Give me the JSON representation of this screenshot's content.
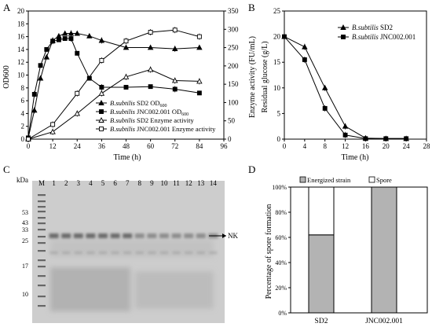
{
  "panels": {
    "A": {
      "label": "A",
      "chart_data": {
        "type": "line",
        "xlabel": "Time (h)",
        "ylabel_left": "OD600",
        "ylabel_right": "Enzyme activity (FU/mL)",
        "xlim": [
          0,
          96
        ],
        "xticks": [
          0,
          12,
          24,
          36,
          48,
          60,
          72,
          84,
          96
        ],
        "ylim_left": [
          0,
          20
        ],
        "yticks_left": [
          0,
          2,
          4,
          6,
          8,
          10,
          12,
          14,
          16,
          18,
          20
        ],
        "ylim_right": [
          0,
          350
        ],
        "yticks_right": [
          0,
          50,
          100,
          150,
          200,
          250,
          300,
          350
        ],
        "legend_position": "bottom-right",
        "series": [
          {
            "name": "B.subtilis SD2 OD600",
            "axis": "left",
            "marker": "filled-triangle",
            "x": [
              0,
              3,
              6,
              9,
              12,
              15,
              18,
              21,
              24,
              30,
              36,
              48,
              60,
              72,
              84
            ],
            "y": [
              0.2,
              4.5,
              9.5,
              12.8,
              15.4,
              16.1,
              16.5,
              16.5,
              16.5,
              16.1,
              15.4,
              14.3,
              14.3,
              14.1,
              14.3
            ]
          },
          {
            "name": "B.subtilis JNC002.001 OD600",
            "axis": "left",
            "marker": "filled-square",
            "x": [
              0,
              3,
              6,
              9,
              12,
              15,
              18,
              21,
              24,
              30,
              36,
              48,
              60,
              72,
              84
            ],
            "y": [
              0.2,
              7.0,
              11.5,
              14.0,
              15.3,
              15.5,
              15.7,
              15.7,
              13.4,
              9.5,
              8.1,
              8.1,
              8.2,
              7.8,
              7.2
            ]
          },
          {
            "name": "B.subtilis SD2 Enzyme activity",
            "axis": "right",
            "marker": "open-triangle",
            "x": [
              0,
              12,
              24,
              36,
              48,
              60,
              72,
              84
            ],
            "y": [
              0,
              20,
              70,
              125,
              170,
              190,
              160,
              158
            ]
          },
          {
            "name": "B.subtilis JNC002.001 Enzyme activity",
            "axis": "right",
            "marker": "open-square",
            "x": [
              0,
              12,
              24,
              36,
              48,
              60,
              72,
              84
            ],
            "y": [
              0,
              40,
              125,
              215,
              268,
              292,
              298,
              280
            ]
          }
        ]
      }
    },
    "B": {
      "label": "B",
      "chart_data": {
        "type": "line",
        "xlabel": "Time (h)",
        "ylabel": "Residual glucose (g/L)",
        "xlim": [
          0,
          28
        ],
        "xticks": [
          0,
          4,
          8,
          12,
          16,
          20,
          24,
          28
        ],
        "ylim": [
          0,
          25
        ],
        "yticks": [
          0,
          5,
          10,
          15,
          20,
          25
        ],
        "legend_position": "top-right",
        "series": [
          {
            "name": "B.subtilis SD2",
            "marker": "filled-triangle",
            "x": [
              0,
              4,
              8,
              12,
              16,
              20,
              24
            ],
            "y": [
              20,
              18,
              10,
              2.5,
              0.2,
              0.1,
              0.1
            ]
          },
          {
            "name": "B.subtilis JNC002.001",
            "marker": "filled-square",
            "x": [
              0,
              4,
              8,
              12,
              16,
              20,
              24
            ],
            "y": [
              20,
              15.5,
              6,
              0.8,
              0.1,
              0.1,
              0.1
            ]
          }
        ]
      }
    },
    "C": {
      "label": "C",
      "kda_label": "kDa",
      "lanes": [
        "M",
        "1",
        "2",
        "3",
        "4",
        "5",
        "6",
        "7",
        "8",
        "9",
        "10",
        "11",
        "12",
        "13",
        "14"
      ],
      "markers": [
        "53",
        "43",
        "33",
        "25",
        "17",
        "10"
      ],
      "band_label": "NK"
    },
    "D": {
      "label": "D",
      "chart_data": {
        "type": "bar",
        "stacked": true,
        "categories": [
          "SD2",
          "JNC002.001"
        ],
        "ylabel": "Percentage of spore formation",
        "ylim": [
          0,
          100
        ],
        "yticks": [
          "0%",
          "20%",
          "40%",
          "60%",
          "80%",
          "100%"
        ],
        "legend_position": "top",
        "series": [
          {
            "name": "Energized strain",
            "values": [
              62,
              100
            ],
            "color": "#b3b3b3"
          },
          {
            "name": "Spore",
            "values": [
              38,
              0
            ],
            "color": "#ffffff"
          }
        ]
      }
    }
  }
}
